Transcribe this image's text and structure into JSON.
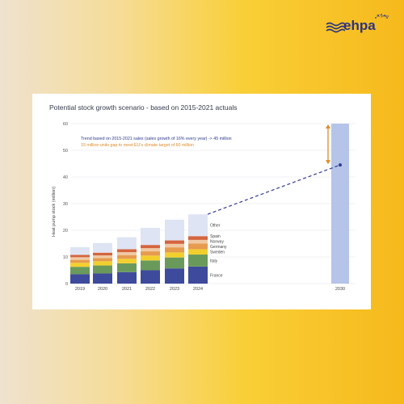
{
  "brand": {
    "name": "ehpa",
    "tagline": "30 years"
  },
  "chart_data": {
    "type": "bar",
    "title": "Potential stock growth scenario - based on 2015-2021 actuals",
    "ylabel": "Heat pump stock (million)",
    "xlabel": "",
    "ylim": [
      0,
      60
    ],
    "yticks": [
      0,
      10,
      20,
      30,
      40,
      50,
      60
    ],
    "categories": [
      "2019",
      "2020",
      "2021",
      "2022",
      "2023",
      "2024"
    ],
    "series": [
      {
        "name": "France",
        "color": "#3e4a9c",
        "values": [
          3.5,
          3.8,
          4.3,
          5.0,
          5.7,
          6.4
        ]
      },
      {
        "name": "Italy",
        "color": "#6a9a5b",
        "values": [
          2.8,
          3.0,
          3.3,
          3.7,
          4.1,
          4.5
        ]
      },
      {
        "name": "Sweden",
        "color": "#f3cf2e",
        "values": [
          1.5,
          1.6,
          1.7,
          1.8,
          1.9,
          2.0
        ]
      },
      {
        "name": "Germany",
        "color": "#e69b4f",
        "values": [
          1.1,
          1.2,
          1.4,
          1.6,
          1.9,
          2.1
        ]
      },
      {
        "name": "Norway",
        "color": "#f0c9a3",
        "values": [
          1.0,
          1.0,
          1.1,
          1.2,
          1.3,
          1.4
        ]
      },
      {
        "name": "Spain",
        "color": "#d4653e",
        "values": [
          0.9,
          1.0,
          1.1,
          1.2,
          1.3,
          1.4
        ]
      },
      {
        "name": "Other",
        "color": "#dfe4f4",
        "values": [
          2.9,
          3.6,
          4.5,
          6.4,
          7.8,
          8.2
        ]
      }
    ],
    "target": {
      "category": "2030",
      "value": 60,
      "color": "#b6c4ea"
    },
    "trend_point": {
      "category": "2030",
      "value": 44.5
    },
    "trend_color": "#2f3b8f",
    "gap_color": "#e08a2a",
    "annotations": {
      "trend": "Trend based on 2015-2021 sales (sales growth of 16% every year) -> 45 million",
      "gap": "15 million units gap to meet EU's climate target of 60 million"
    }
  }
}
